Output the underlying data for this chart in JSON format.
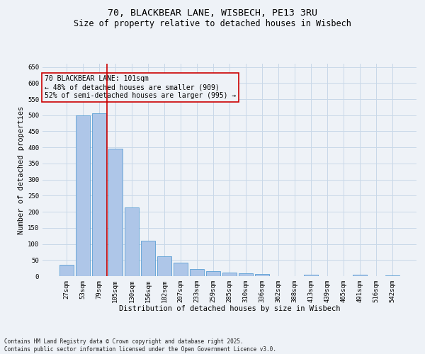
{
  "title_line1": "70, BLACKBEAR LANE, WISBECH, PE13 3RU",
  "title_line2": "Size of property relative to detached houses in Wisbech",
  "xlabel": "Distribution of detached houses by size in Wisbech",
  "ylabel": "Number of detached properties",
  "categories": [
    "27sqm",
    "53sqm",
    "79sqm",
    "105sqm",
    "130sqm",
    "156sqm",
    "182sqm",
    "207sqm",
    "233sqm",
    "259sqm",
    "285sqm",
    "310sqm",
    "336sqm",
    "362sqm",
    "388sqm",
    "413sqm",
    "439sqm",
    "465sqm",
    "491sqm",
    "516sqm",
    "542sqm"
  ],
  "values": [
    35,
    500,
    507,
    397,
    214,
    111,
    62,
    42,
    21,
    15,
    12,
    8,
    7,
    1,
    1,
    5,
    1,
    0,
    4,
    0,
    3
  ],
  "bar_color": "#aec6e8",
  "bar_edge_color": "#5a9fd4",
  "vline_index": 3,
  "vline_color": "#cc0000",
  "annotation_text": "70 BLACKBEAR LANE: 101sqm\n← 48% of detached houses are smaller (909)\n52% of semi-detached houses are larger (995) →",
  "annotation_box_color": "#cc0000",
  "ylim": [
    0,
    660
  ],
  "yticks": [
    0,
    50,
    100,
    150,
    200,
    250,
    300,
    350,
    400,
    450,
    500,
    550,
    600,
    650
  ],
  "grid_color": "#c8d8e8",
  "background_color": "#eef2f7",
  "footer_text": "Contains HM Land Registry data © Crown copyright and database right 2025.\nContains public sector information licensed under the Open Government Licence v3.0.",
  "title_fontsize": 9.5,
  "subtitle_fontsize": 8.5,
  "axis_label_fontsize": 7.5,
  "tick_fontsize": 6.5,
  "annotation_fontsize": 7,
  "footer_fontsize": 5.5
}
